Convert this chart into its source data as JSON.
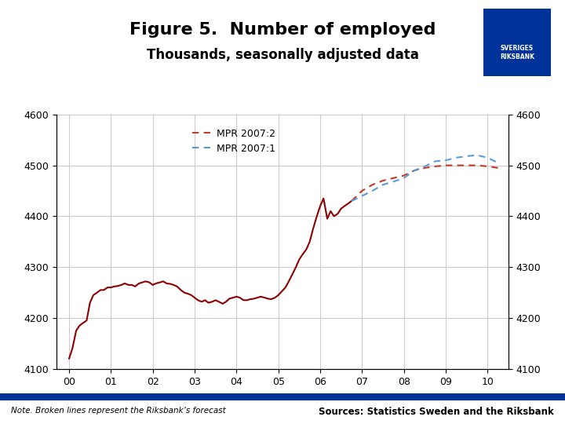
{
  "title": "Figure 5.  Number of employed",
  "subtitle": "Thousands, seasonally adjusted data",
  "title_fontsize": 16,
  "subtitle_fontsize": 12,
  "xlabel": "",
  "ylim": [
    4100,
    4600
  ],
  "yticks": [
    4100,
    4200,
    4300,
    4400,
    4500,
    4600
  ],
  "xtick_labels": [
    "00",
    "01",
    "02",
    "03",
    "04",
    "05",
    "06",
    "07",
    "08",
    "09",
    "10"
  ],
  "background_color": "#ffffff",
  "grid_color": "#cccccc",
  "solid_color": "#8b0000",
  "dash_red_color": "#c0392b",
  "dash_blue_color": "#5b9bd5",
  "legend_labels": [
    "MPR 2007:2",
    "MPR 2007:1"
  ],
  "note_text": "Note. Broken lines represent the Riksbank’s forecast",
  "source_text": "Sources: Statistics Sweden and the Riksbank",
  "footer_bar_color": "#003399",
  "solid_data_x": [
    0.0,
    0.08,
    0.17,
    0.25,
    0.33,
    0.42,
    0.5,
    0.58,
    0.67,
    0.75,
    0.83,
    0.92,
    1.0,
    1.08,
    1.17,
    1.25,
    1.33,
    1.42,
    1.5,
    1.58,
    1.67,
    1.75,
    1.83,
    1.92,
    2.0,
    2.08,
    2.17,
    2.25,
    2.33,
    2.42,
    2.5,
    2.58,
    2.67,
    2.75,
    2.83,
    2.92,
    3.0,
    3.08,
    3.17,
    3.25,
    3.33,
    3.42,
    3.5,
    3.58,
    3.67,
    3.75,
    3.83,
    3.92,
    4.0,
    4.08,
    4.17,
    4.25,
    4.33,
    4.42,
    4.5,
    4.58,
    4.67,
    4.75,
    4.83,
    4.92,
    5.0,
    5.08,
    5.17,
    5.25,
    5.33,
    5.42,
    5.5,
    5.58,
    5.67,
    5.75,
    5.83,
    5.92,
    6.0,
    6.08,
    6.17,
    6.25,
    6.33,
    6.42,
    6.5,
    6.58,
    6.67,
    6.75
  ],
  "solid_data_y": [
    4120,
    4140,
    4175,
    4185,
    4190,
    4195,
    4230,
    4245,
    4250,
    4255,
    4255,
    4260,
    4260,
    4262,
    4263,
    4265,
    4268,
    4265,
    4265,
    4262,
    4268,
    4270,
    4272,
    4270,
    4265,
    4268,
    4270,
    4272,
    4268,
    4267,
    4265,
    4262,
    4255,
    4250,
    4248,
    4245,
    4240,
    4235,
    4232,
    4235,
    4230,
    4232,
    4235,
    4232,
    4228,
    4232,
    4238,
    4240,
    4242,
    4240,
    4235,
    4235,
    4237,
    4238,
    4240,
    4242,
    4240,
    4238,
    4237,
    4240,
    4245,
    4252,
    4260,
    4272,
    4285,
    4300,
    4315,
    4325,
    4335,
    4350,
    4375,
    4400,
    4420,
    4435,
    4395,
    4410,
    4400,
    4405,
    4415,
    4420,
    4425,
    4430
  ],
  "mpr2_x": [
    6.75,
    7.0,
    7.25,
    7.5,
    7.75,
    8.0,
    8.25,
    8.5,
    8.75,
    9.0,
    9.25,
    9.5,
    9.75,
    10.0,
    10.25
  ],
  "mpr2_y": [
    4430,
    4450,
    4462,
    4470,
    4475,
    4480,
    4490,
    4495,
    4498,
    4500,
    4500,
    4500,
    4500,
    4498,
    4495
  ],
  "mpr1_x": [
    6.75,
    7.0,
    7.25,
    7.5,
    7.75,
    8.0,
    8.25,
    8.5,
    8.75,
    9.0,
    9.25,
    9.5,
    9.75,
    10.0,
    10.25
  ],
  "mpr1_y": [
    4430,
    4440,
    4450,
    4462,
    4468,
    4475,
    4490,
    4498,
    4508,
    4510,
    4515,
    4518,
    4520,
    4515,
    4505
  ]
}
